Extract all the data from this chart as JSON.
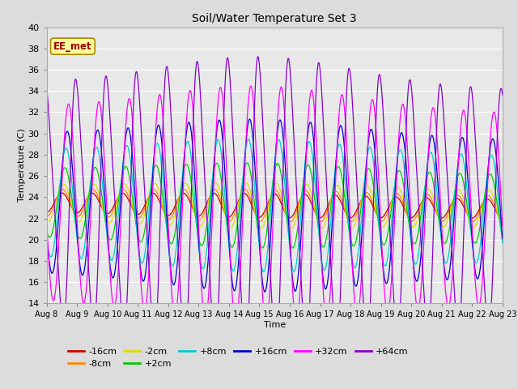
{
  "title": "Soil/Water Temperature Set 3",
  "xlabel": "Time",
  "ylabel": "Temperature (C)",
  "ylim": [
    14,
    40
  ],
  "xlim": [
    0,
    15
  ],
  "xtick_labels": [
    "Aug 8",
    "Aug 9",
    "Aug 10",
    "Aug 11",
    "Aug 12",
    "Aug 13",
    "Aug 14",
    "Aug 15",
    "Aug 16",
    "Aug 17",
    "Aug 18",
    "Aug 19",
    "Aug 20",
    "Aug 21",
    "Aug 22",
    "Aug 23"
  ],
  "fig_bg": "#dcdcdc",
  "plot_bg": "#e8e8e8",
  "series": [
    {
      "name": "-16cm",
      "color": "#cc0000",
      "amp": 0.9,
      "phase": 0.0,
      "base_trend": -0.04
    },
    {
      "name": "-8cm",
      "color": "#ff8800",
      "amp": 1.2,
      "phase": 0.03,
      "base_trend": -0.04
    },
    {
      "name": "-2cm",
      "color": "#dddd00",
      "amp": 1.7,
      "phase": 0.06,
      "base_trend": -0.04
    },
    {
      "name": "+2cm",
      "color": "#00cc00",
      "amp": 3.2,
      "phase": 0.1,
      "base_trend": -0.04
    },
    {
      "name": "+8cm",
      "color": "#00cccc",
      "amp": 5.0,
      "phase": 0.14,
      "base_trend": -0.04
    },
    {
      "name": "+16cm",
      "color": "#0000cc",
      "amp": 6.5,
      "phase": 0.18,
      "base_trend": -0.04
    },
    {
      "name": "+32cm",
      "color": "#ff00ff",
      "amp": 9.0,
      "phase": 0.22,
      "base_trend": -0.04
    },
    {
      "name": "+64cm",
      "color": "#8800cc",
      "amp": 12.5,
      "phase": 0.5,
      "base_trend": -0.04
    }
  ],
  "watermark": "EE_met",
  "watermark_color": "#990000",
  "watermark_bg": "#ffff99",
  "watermark_border": "#aa8800"
}
